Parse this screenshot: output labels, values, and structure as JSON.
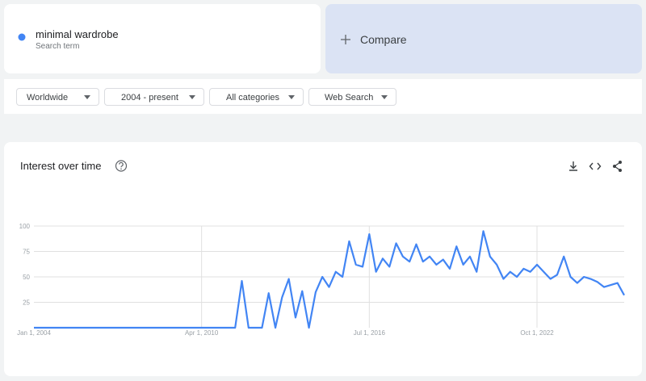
{
  "search_term": {
    "name": "minimal wardrobe",
    "label": "Search term",
    "color": "#4285f4"
  },
  "compare": "Compare",
  "filters": [
    "Worldwide",
    "2004 - present",
    "All categories",
    "Web Search"
  ],
  "chart_data": {
    "type": "line",
    "title": "Interest over time",
    "color": "#4285f4",
    "x": [
      "Jan 1, 2004",
      "Apr 1, 2004",
      "Jul 1, 2004",
      "Oct 1, 2004",
      "Jan 1, 2005",
      "Apr 1, 2005",
      "Jul 1, 2005",
      "Oct 1, 2005",
      "Jan 1, 2006",
      "Apr 1, 2006",
      "Jul 1, 2006",
      "Oct 1, 2006",
      "Jan 1, 2007",
      "Apr 1, 2007",
      "Jul 1, 2007",
      "Oct 1, 2007",
      "Jan 1, 2008",
      "Apr 1, 2008",
      "Jul 1, 2008",
      "Oct 1, 2008",
      "Jan 1, 2009",
      "Apr 1, 2009",
      "Jul 1, 2009",
      "Oct 1, 2009",
      "Jan 1, 2010",
      "Apr 1, 2010",
      "Jul 1, 2010",
      "Oct 1, 2010",
      "Jan 1, 2011",
      "Apr 1, 2011",
      "Jul 1, 2011",
      "Oct 1, 2011",
      "Jan 1, 2012",
      "Apr 1, 2012",
      "Jul 1, 2012",
      "Oct 1, 2012",
      "Jan 1, 2013",
      "Apr 1, 2013",
      "Jul 1, 2013",
      "Oct 1, 2013",
      "Jan 1, 2014",
      "Apr 1, 2014",
      "Jul 1, 2014",
      "Oct 1, 2014",
      "Jan 1, 2015",
      "Apr 1, 2015",
      "Jul 1, 2015",
      "Oct 1, 2015",
      "Jan 1, 2016",
      "Apr 1, 2016",
      "Jul 1, 2016",
      "Oct 1, 2016",
      "Jan 1, 2017",
      "Apr 1, 2017",
      "Jul 1, 2017",
      "Oct 1, 2017",
      "Jan 1, 2018",
      "Apr 1, 2018",
      "Jul 1, 2018",
      "Oct 1, 2018",
      "Jan 1, 2019",
      "Apr 1, 2019",
      "Jul 1, 2019",
      "Oct 1, 2019",
      "Jan 1, 2020",
      "Apr 1, 2020",
      "Jul 1, 2020",
      "Oct 1, 2020",
      "Jan 1, 2021",
      "Apr 1, 2021",
      "Jul 1, 2021",
      "Oct 1, 2021",
      "Jan 1, 2022",
      "Apr 1, 2022",
      "Jul 1, 2022",
      "Oct 1, 2022",
      "Jan 1, 2023",
      "Apr 1, 2023",
      "Jul 1, 2023",
      "Oct 1, 2023",
      "Jan 1, 2024",
      "Apr 1, 2024",
      "Jul 1, 2024",
      "Oct 1, 2024",
      "Jan 1, 2025",
      "Apr 1, 2025",
      "Jul 1, 2025",
      "Oct 1, 2025",
      "Jan 1, 2026"
    ],
    "values": [
      0,
      0,
      0,
      0,
      0,
      0,
      0,
      0,
      0,
      0,
      0,
      0,
      0,
      0,
      0,
      0,
      0,
      0,
      0,
      0,
      0,
      0,
      0,
      0,
      0,
      0,
      0,
      0,
      0,
      0,
      0,
      46,
      0,
      0,
      0,
      34,
      0,
      30,
      48,
      10,
      36,
      0,
      35,
      50,
      40,
      55,
      50,
      85,
      62,
      60,
      92,
      55,
      68,
      60,
      83,
      70,
      65,
      82,
      65,
      70,
      62,
      67,
      58,
      80,
      62,
      70,
      55,
      95,
      70,
      62,
      48,
      55,
      50,
      58,
      55,
      62,
      55,
      48,
      52,
      70,
      50,
      44,
      50,
      48,
      45,
      40,
      42,
      44,
      32
    ],
    "xticks": [
      "Jan 1, 2004",
      "Apr 1, 2010",
      "Jul 1, 2016",
      "Oct 1, 2022"
    ],
    "ylim": [
      0,
      100
    ],
    "yticks": [
      25,
      50,
      75,
      100
    ],
    "grid": true
  }
}
